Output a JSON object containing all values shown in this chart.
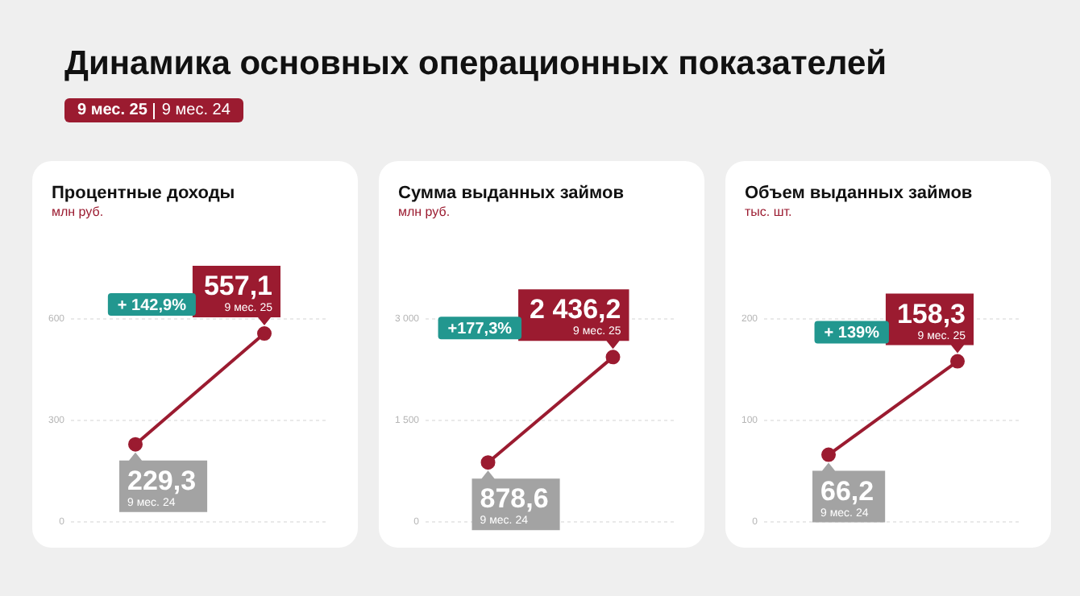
{
  "chart_data": [
    {
      "type": "other",
      "title": "Динамика основных операционных показателей",
      "annotations": [
        "9 мес. 25",
        "9 мес. 24"
      ]
    },
    {
      "type": "line",
      "title": "Процентные доходы",
      "subtitle": "млн руб.",
      "categories": [
        "9 мес. 24",
        "9 мес. 25"
      ],
      "values": [
        229.3,
        557.1
      ],
      "value_labels": [
        "229,3",
        "557,1"
      ],
      "color": "#9b1b30",
      "ylim": [
        0,
        600
      ],
      "yticks": [
        0,
        300,
        600
      ],
      "grid": "y",
      "marker": "circle",
      "tick_labels": "y",
      "annotations": [
        "+ 142,9%"
      ]
    },
    {
      "type": "line",
      "title": "Сумма выданных займов",
      "subtitle": "млн руб.",
      "categories": [
        "9 мес. 24",
        "9 мес. 25"
      ],
      "values": [
        878.6,
        2436.2
      ],
      "value_labels": [
        "878,6",
        "2 436,2"
      ],
      "color": "#9b1b30",
      "ylim": [
        0,
        3000
      ],
      "yticks": [
        0,
        {
          "value": 1500,
          "label": "1 500"
        },
        {
          "value": 3000,
          "label": "3 000"
        }
      ],
      "grid": "y",
      "marker": "circle",
      "tick_labels": "y",
      "annotations": [
        "+177,3%"
      ]
    },
    {
      "type": "line",
      "title": "Объем выданных займов",
      "subtitle": "тыс. шт.",
      "categories": [
        "9 мес. 24",
        "9 мес. 25"
      ],
      "values": [
        66.2,
        158.3
      ],
      "value_labels": [
        "66,2",
        "158,3"
      ],
      "color": "#9b1b30",
      "ylim": [
        0,
        200
      ],
      "yticks": [
        0,
        100,
        200
      ],
      "grid": "y",
      "marker": "circle",
      "tick_labels": "y",
      "annotations": [
        "+ 139%"
      ]
    }
  ]
}
